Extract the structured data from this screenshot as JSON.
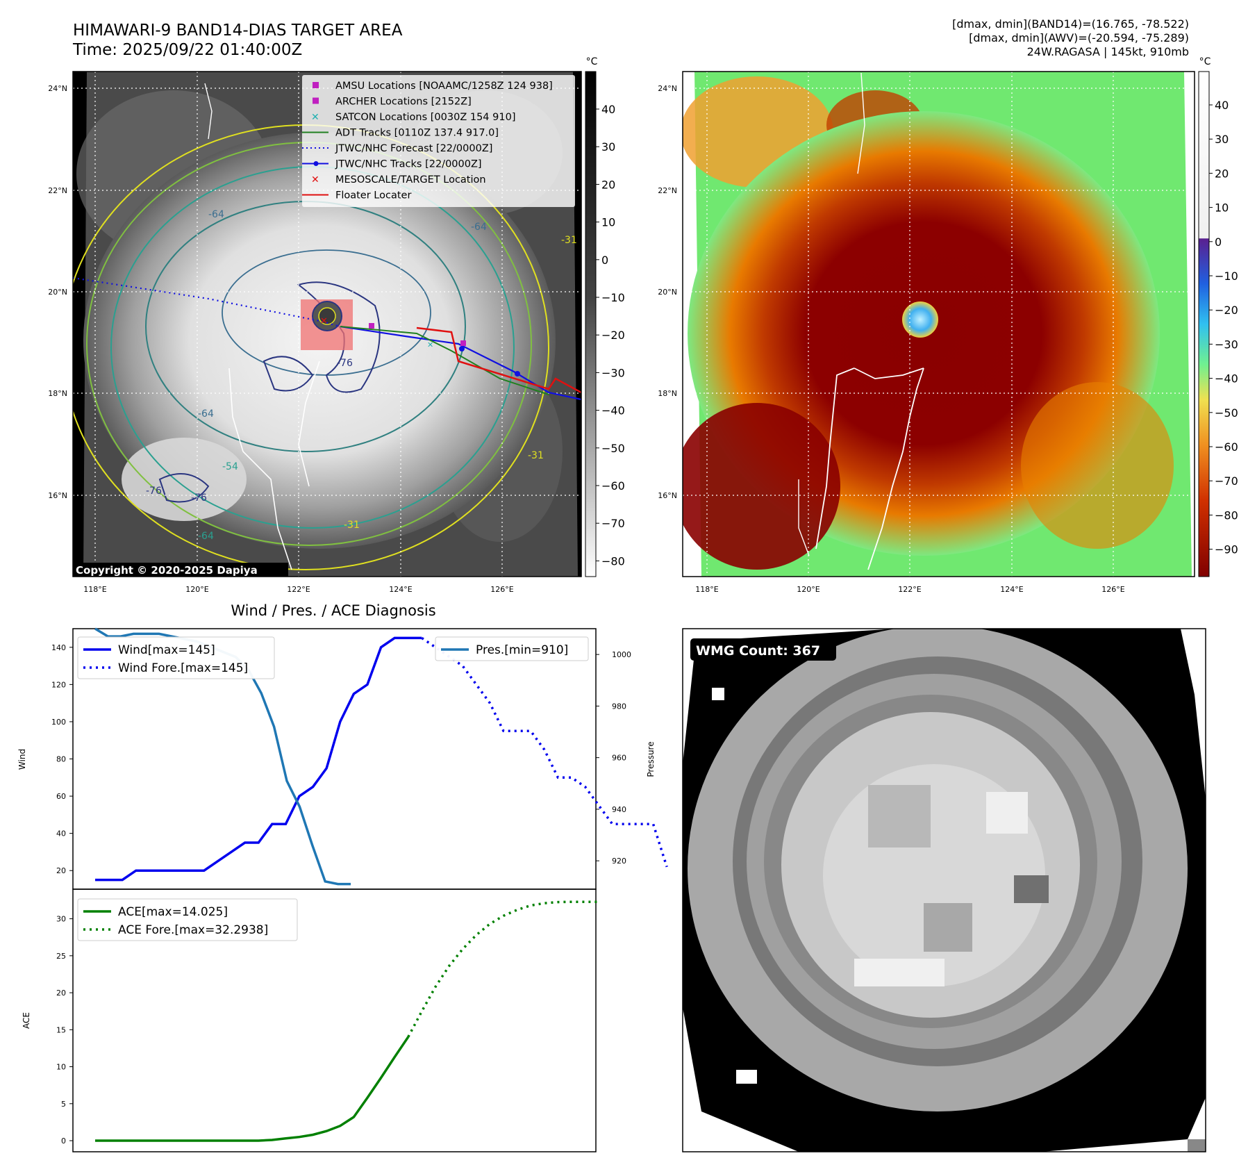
{
  "header": {
    "title_line1": "HIMAWARI-9 BAND14-DIAS TARGET AREA",
    "title_line2": "Time: 2025/09/22 01:40:00Z",
    "info_line1": "[dmax, dmin](BAND14)=(16.765, -78.522)",
    "info_line2": "[dmax, dmin](AWV)=(-20.594, -75.289)",
    "info_line3": "24W.RAGASA | 145kt, 910mb"
  },
  "map": {
    "lat_labels": [
      "24°N",
      "22°N",
      "20°N",
      "18°N",
      "16°N"
    ],
    "lon_labels": [
      "118°E",
      "120°E",
      "122°E",
      "124°E",
      "126°E"
    ],
    "copyright": "Copyright © 2020-2025 Dapiya",
    "contour_labels": [
      "-64",
      "-64",
      "-76",
      "-64",
      "-54",
      "-76",
      "-76",
      "-64",
      "-31",
      "-31",
      "-31"
    ],
    "colorbar_unit": "°C",
    "colorbar_ticks": [
      "40",
      "30",
      "20",
      "10",
      "0",
      "−10",
      "−20",
      "−30",
      "−40",
      "−50",
      "−60",
      "−70",
      "−80"
    ],
    "legend": [
      {
        "label": "AMSU Locations [NOAAMC/1258Z 124 938]",
        "marker": "square",
        "color": "#c020c0"
      },
      {
        "label": "ARCHER Locations [2152Z]",
        "marker": "square",
        "color": "#c020c0"
      },
      {
        "label": "SATCON Locations [0030Z 154 910]",
        "marker": "x",
        "color": "#20b0b0"
      },
      {
        "label": "ADT Tracks [0110Z 137.4 917.0]",
        "marker": "line",
        "color": "#208020"
      },
      {
        "label": "JTWC/NHC Forecast [22/0000Z]",
        "marker": "dotted",
        "color": "#1010e0"
      },
      {
        "label": "JTWC/NHC Tracks [22/0000Z]",
        "marker": "line-dot",
        "color": "#1010e0"
      },
      {
        "label": "MESOSCALE/TARGET Location",
        "marker": "x",
        "color": "#e01010"
      },
      {
        "label": "Floater Locater",
        "marker": "line",
        "color": "#e01010"
      }
    ]
  },
  "awv_map": {
    "colorbar_unit": "°C",
    "colorbar_ticks": [
      "40",
      "30",
      "20",
      "10",
      "0",
      "−10",
      "−20",
      "−30",
      "−40",
      "−50",
      "−60",
      "−70",
      "−80",
      "−90"
    ]
  },
  "wmg": {
    "badge": "WMG Count: 367"
  },
  "chart_data": [
    {
      "type": "line",
      "title": "Wind / Pres. / ACE Diagnosis",
      "ylabel": "Wind",
      "y2label": "Pressure",
      "ylim": [
        10,
        150
      ],
      "y2lim": [
        909,
        1010
      ],
      "yticks": [
        20,
        40,
        60,
        80,
        100,
        120,
        140
      ],
      "y2ticks": [
        920,
        940,
        960,
        980,
        1000
      ],
      "series": [
        {
          "name": "Wind[max=145]",
          "axis": "left",
          "style": "solid",
          "color": "#0000ee",
          "values": [
            15,
            15,
            15,
            20,
            20,
            20,
            20,
            20,
            20,
            25,
            30,
            35,
            35,
            45,
            45,
            60,
            65,
            75,
            100,
            115,
            120,
            140,
            145,
            145,
            145
          ]
        },
        {
          "name": "Wind Fore.[max=145]",
          "axis": "left",
          "style": "dotted",
          "color": "#0000ee",
          "values": [
            145,
            140,
            135,
            130,
            120,
            110,
            95,
            95,
            95,
            85,
            70,
            70,
            65,
            55,
            45,
            45,
            45,
            45,
            22
          ]
        },
        {
          "name": "Pres.[min=910]",
          "axis": "right",
          "style": "solid",
          "color": "#1f77b4",
          "values": [
            1010,
            1007,
            1007,
            1008,
            1008,
            1008,
            1007,
            1006,
            1005,
            1003,
            1001,
            999,
            994,
            985,
            972,
            951,
            941,
            926,
            912,
            911,
            911
          ]
        }
      ]
    },
    {
      "type": "line",
      "ylabel": "ACE",
      "ylim": [
        -1.5,
        34
      ],
      "yticks": [
        0,
        5,
        10,
        15,
        20,
        25,
        30
      ],
      "series": [
        {
          "name": "ACE[max=14.025]",
          "style": "solid",
          "color": "#008000",
          "values": [
            0,
            0,
            0,
            0,
            0,
            0,
            0,
            0,
            0,
            0,
            0,
            0,
            0,
            0.1,
            0.3,
            0.5,
            0.8,
            1.3,
            2.0,
            3.2,
            5.8,
            8.5,
            11.3,
            14.025
          ]
        },
        {
          "name": "ACE Fore.[max=32.2938]",
          "style": "dotted",
          "color": "#008000",
          "values": [
            14.025,
            17.5,
            20.8,
            23.6,
            25.9,
            27.8,
            29.3,
            30.4,
            31.2,
            31.8,
            32.1,
            32.25,
            32.29,
            32.29,
            32.2938
          ]
        }
      ]
    }
  ]
}
